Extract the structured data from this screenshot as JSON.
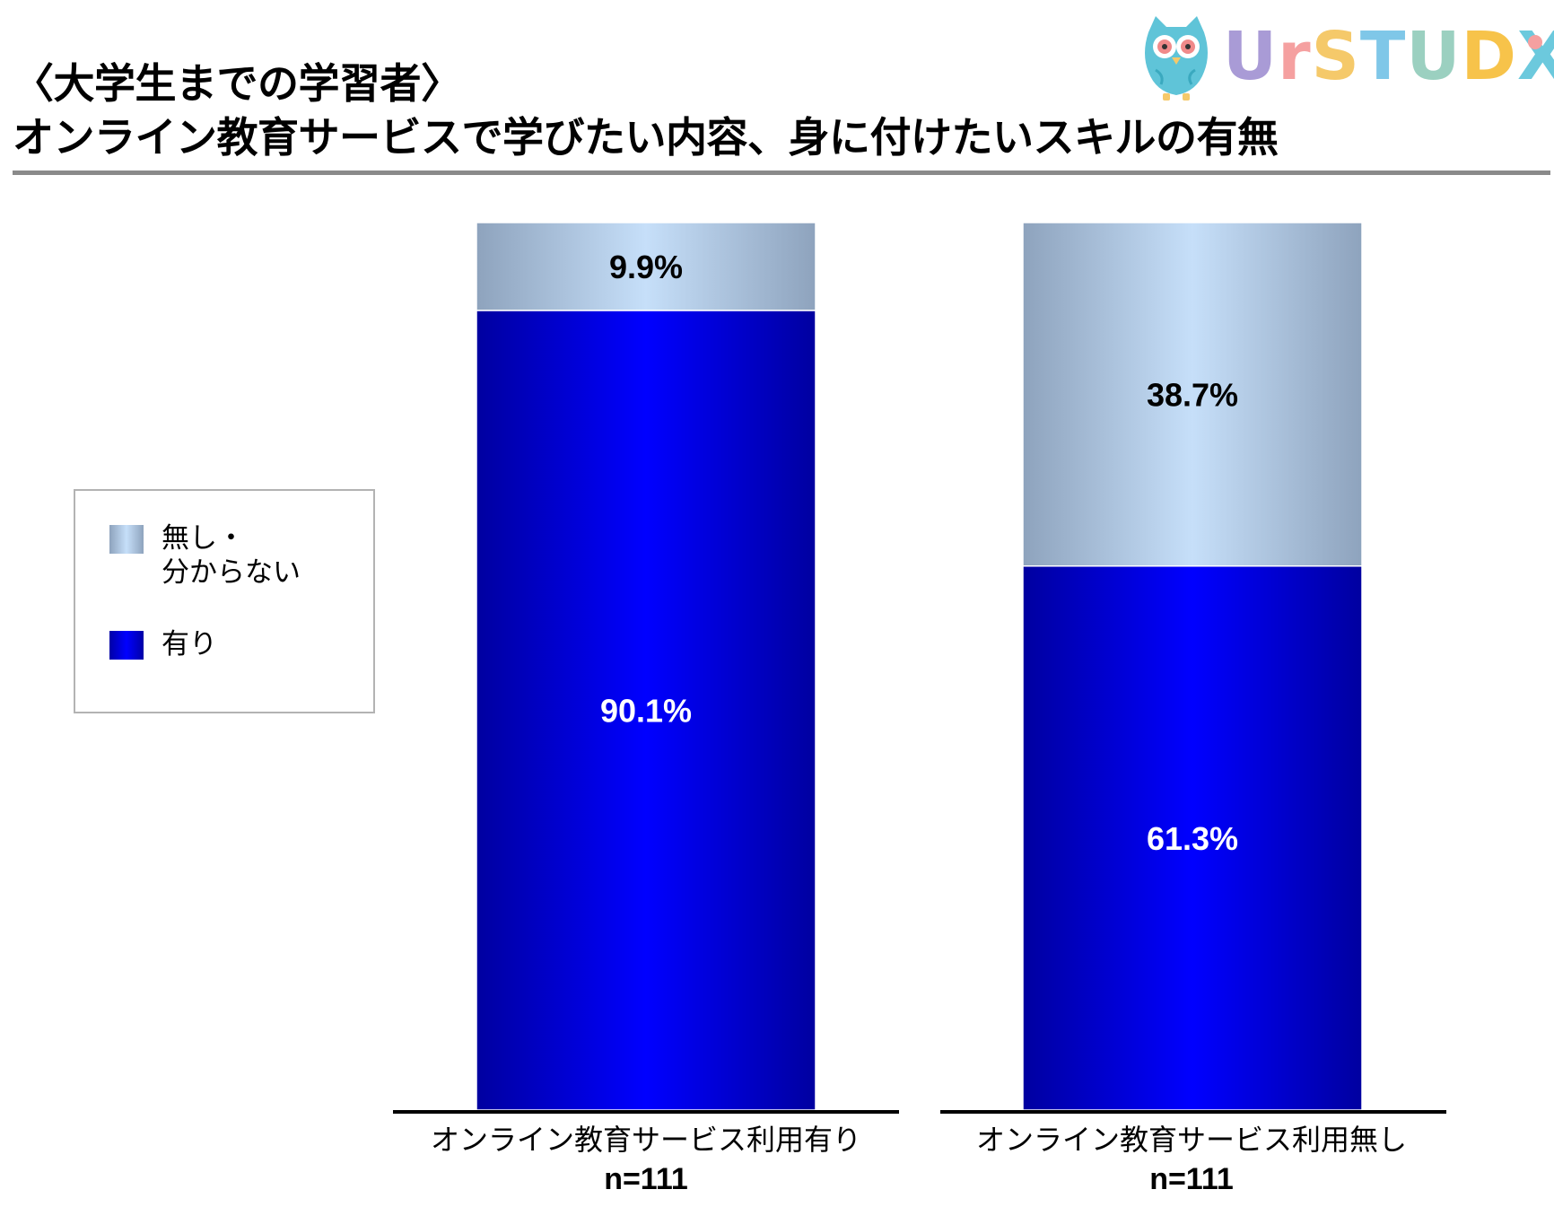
{
  "title_line1": "〈大学生までの学習者〉",
  "title_line2": "オンライン教育サービスで学びたい内容、身に付けたいスキルの有無",
  "logo": {
    "text": "UrSTUDX",
    "icon": "owl-icon",
    "colors": [
      "#a99bd6",
      "#f5a0a0",
      "#f5c96a",
      "#7fc7e8",
      "#9bd0c0",
      "#f7c34a",
      "#6cc9dd"
    ]
  },
  "legend": {
    "items": [
      {
        "label_line1": "無し・",
        "label_line2": "分からない",
        "color": "#c6dff9"
      },
      {
        "label_line1": "有り",
        "label_line2": "",
        "color": "#0000ff"
      }
    ]
  },
  "chart_data": {
    "type": "bar",
    "stacked": true,
    "unit": "%",
    "ylim": [
      0,
      100
    ],
    "grid": false,
    "legend_position": "left",
    "categories": [
      "オンライン教育サービス利用有り",
      "オンライン教育サービス利用無し"
    ],
    "n_labels": [
      "n=111",
      "n=111"
    ],
    "series": [
      {
        "name": "有り",
        "values": [
          90.1,
          61.3
        ],
        "labels": [
          "90.1%",
          "61.3%"
        ],
        "color": "#0000ff"
      },
      {
        "name": "無し・分からない",
        "values": [
          9.9,
          38.7
        ],
        "labels": [
          "9.9%",
          "38.7%"
        ],
        "color": "#c6dff9"
      }
    ]
  }
}
